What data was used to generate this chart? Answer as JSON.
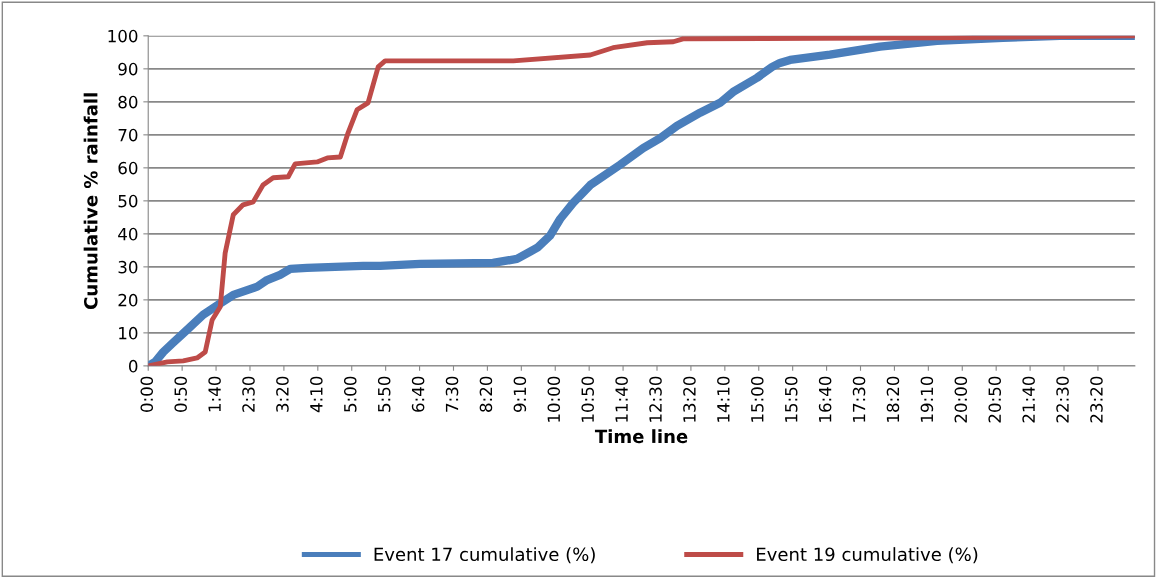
{
  "chart_data": {
    "type": "line",
    "xlabel": "Time line",
    "ylabel": "Cumulative % rainfall",
    "xlim": [
      0,
      24.24
    ],
    "ylim": [
      0,
      100
    ],
    "yticks": [
      0,
      10,
      20,
      30,
      40,
      50,
      60,
      70,
      80,
      90,
      100
    ],
    "xticks": [
      {
        "value": 0,
        "label": "0:00"
      },
      {
        "value": 0.83333,
        "label": "0:50"
      },
      {
        "value": 1.66667,
        "label": "1:40"
      },
      {
        "value": 2.5,
        "label": "2:30"
      },
      {
        "value": 3.33333,
        "label": "3:20"
      },
      {
        "value": 4.16667,
        "label": "4:10"
      },
      {
        "value": 5,
        "label": "5:00"
      },
      {
        "value": 5.83333,
        "label": "5:50"
      },
      {
        "value": 6.66667,
        "label": "6:40"
      },
      {
        "value": 7.5,
        "label": "7:30"
      },
      {
        "value": 8.33333,
        "label": "8:20"
      },
      {
        "value": 9.16667,
        "label": "9:10"
      },
      {
        "value": 10,
        "label": "10:00"
      },
      {
        "value": 10.83333,
        "label": "10:50"
      },
      {
        "value": 11.66667,
        "label": "11:40"
      },
      {
        "value": 12.5,
        "label": "12:30"
      },
      {
        "value": 13.33333,
        "label": "13:20"
      },
      {
        "value": 14.16667,
        "label": "14:10"
      },
      {
        "value": 15,
        "label": "15:00"
      },
      {
        "value": 15.83333,
        "label": "15:50"
      },
      {
        "value": 16.66667,
        "label": "16:40"
      },
      {
        "value": 17.5,
        "label": "17:30"
      },
      {
        "value": 18.33333,
        "label": "18:20"
      },
      {
        "value": 19.16667,
        "label": "19:10"
      },
      {
        "value": 20,
        "label": "20:00"
      },
      {
        "value": 20.83333,
        "label": "20:50"
      },
      {
        "value": 21.66667,
        "label": "21:40"
      },
      {
        "value": 22.5,
        "label": "22:30"
      },
      {
        "value": 23.33333,
        "label": "23:20"
      }
    ],
    "grid": "y",
    "legend": "bottom",
    "marker": "none",
    "line_style": "solid",
    "series": [
      {
        "name": "Event 17 cumulative (%)",
        "color": "#4a7ebb",
        "x": [
          0,
          0.17,
          0.37,
          0.61,
          0.96,
          1.35,
          1.72,
          2.09,
          2.68,
          2.92,
          3.24,
          3.49,
          3.9,
          5.28,
          5.7,
          6.68,
          8.47,
          9.06,
          9.56,
          9.87,
          10.12,
          10.44,
          10.86,
          11.59,
          12.16,
          12.58,
          12.99,
          13.56,
          14.05,
          14.37,
          14.96,
          15.33,
          15.52,
          15.77,
          16.75,
          17.98,
          19.38,
          21,
          22.4,
          24.24
        ],
        "values": [
          0,
          1.2,
          4.2,
          7,
          11,
          15.5,
          18.5,
          21.5,
          24,
          26,
          27.6,
          29.4,
          29.7,
          30.3,
          30.3,
          30.9,
          31.2,
          32.4,
          35.8,
          39.4,
          44.5,
          49.4,
          54.8,
          60.9,
          66,
          69,
          72.7,
          76.7,
          79.7,
          83,
          87.3,
          90.6,
          91.8,
          92.7,
          94.3,
          96.7,
          98.5,
          99.4,
          100,
          100
        ]
      },
      {
        "name": "Event 19 cumulative (%)",
        "color": "#be4b48",
        "x": [
          0,
          0.47,
          0.86,
          1.2,
          1.4,
          1.57,
          1.77,
          1.89,
          2.09,
          2.33,
          2.58,
          2.82,
          3.07,
          3.44,
          3.61,
          4.15,
          4.4,
          4.72,
          4.91,
          5.13,
          5.4,
          5.65,
          5.82,
          8.97,
          10.86,
          11.42,
          12.26,
          12.9,
          13.14,
          19.38,
          24.24
        ],
        "values": [
          0,
          1.2,
          1.5,
          2.4,
          4.2,
          13.9,
          17.9,
          34.2,
          45.8,
          48.8,
          49.7,
          54.8,
          57,
          57.3,
          61.2,
          61.8,
          63,
          63.3,
          70.6,
          77.6,
          79.7,
          90.6,
          92.4,
          92.4,
          94.2,
          96.4,
          97.9,
          98.2,
          99.1,
          99.4,
          100
        ]
      }
    ]
  }
}
